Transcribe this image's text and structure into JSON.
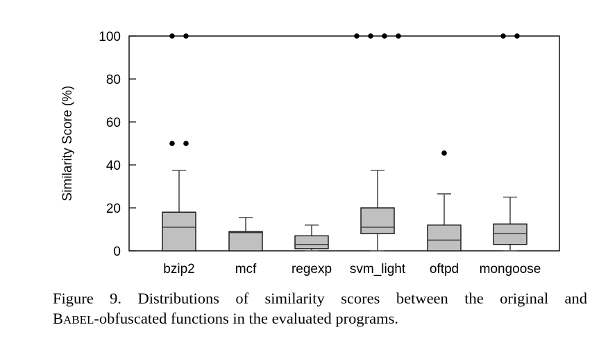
{
  "chart_data": {
    "type": "boxplot",
    "title": "",
    "xlabel": "",
    "ylabel": "Similarity Score (%)",
    "ylim": [
      0,
      100
    ],
    "yticks": [
      0,
      20,
      40,
      60,
      80,
      100
    ],
    "grid": false,
    "categories": [
      "bzip2",
      "mcf",
      "regexp",
      "svm_light",
      "oftpd",
      "mongoose"
    ],
    "series": [
      {
        "name": "bzip2",
        "whisker_low": 0,
        "q1": 0,
        "median": 11,
        "q3": 18,
        "whisker_high": 37.5,
        "outliers": [
          50,
          50,
          100,
          100
        ]
      },
      {
        "name": "mcf",
        "whisker_low": 0,
        "q1": 0,
        "median": 8.5,
        "q3": 9,
        "whisker_high": 15.5,
        "outliers": []
      },
      {
        "name": "regexp",
        "whisker_low": 0,
        "q1": 1,
        "median": 3,
        "q3": 7,
        "whisker_high": 12,
        "outliers": []
      },
      {
        "name": "svm_light",
        "whisker_low": 0,
        "q1": 8,
        "median": 11,
        "q3": 20,
        "whisker_high": 37.5,
        "outliers": [
          100,
          100,
          100,
          100
        ]
      },
      {
        "name": "oftpd",
        "whisker_low": 0,
        "q1": 0,
        "median": 5,
        "q3": 12,
        "whisker_high": 26.5,
        "outliers": [
          45.5
        ]
      },
      {
        "name": "mongoose",
        "whisker_low": 0,
        "q1": 3,
        "median": 8,
        "q3": 12.5,
        "whisker_high": 25,
        "outliers": [
          100,
          100
        ]
      }
    ],
    "box_color": "#c0c0c0"
  },
  "caption": {
    "line1": "Figure 9. Distributions of similarity scores between the original and",
    "line2_prefix_B": "B",
    "line2_prefix_smallcaps": "ABEL",
    "line2_rest": "-obfuscated functions in the evaluated programs."
  }
}
